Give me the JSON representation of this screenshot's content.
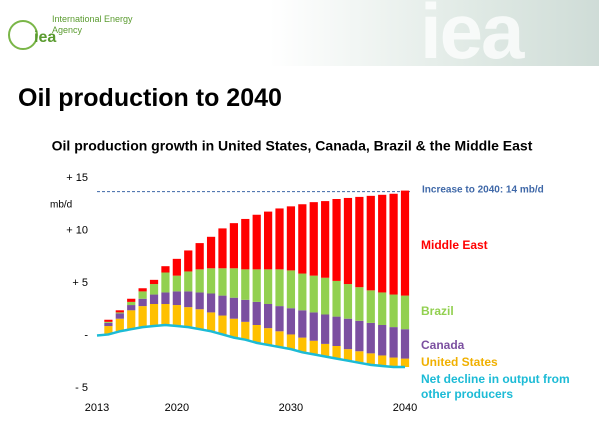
{
  "header": {
    "logo": "iea",
    "organization": "International Energy Agency"
  },
  "slide_title": "Oil production to 2040",
  "chart_data": {
    "type": "bar",
    "title": "Oil production growth in United States, Canada, Brazil & the Middle East",
    "y_label": "mb/d",
    "x": [
      2013,
      2014,
      2015,
      2016,
      2017,
      2018,
      2019,
      2020,
      2021,
      2022,
      2023,
      2024,
      2025,
      2026,
      2027,
      2028,
      2029,
      2030,
      2031,
      2032,
      2033,
      2034,
      2035,
      2036,
      2037,
      2038,
      2039,
      2040
    ],
    "xlim": [
      2013,
      2040
    ],
    "xticks": [
      2013,
      2020,
      2030,
      2040
    ],
    "ylim": [
      -5,
      15
    ],
    "yticks": [
      {
        "value": -5,
        "label": "- 5"
      },
      {
        "value": 0,
        "label": "-"
      },
      {
        "value": 5,
        "label": "+ 5"
      },
      {
        "value": 10,
        "label": "+ 10"
      },
      {
        "value": 15,
        "label": "+ 15"
      }
    ],
    "grid": false,
    "stacked": true,
    "series": [
      {
        "name": "United States",
        "color": "#ffc000",
        "values": [
          null,
          0.8,
          1.2,
          1.8,
          2.0,
          2.1,
          2.0,
          2.0,
          1.9,
          1.9,
          1.8,
          1.8,
          1.8,
          1.7,
          1.7,
          1.6,
          1.5,
          1.4,
          1.4,
          1.3,
          1.2,
          1.2,
          1.1,
          1.1,
          1.1,
          1.0,
          0.9,
          0.8
        ]
      },
      {
        "name": "Canada",
        "color": "#7b4fa0",
        "values": [
          null,
          0.3,
          0.5,
          0.5,
          0.7,
          0.9,
          1.1,
          1.3,
          1.5,
          1.6,
          1.8,
          1.9,
          2.0,
          2.1,
          2.2,
          2.3,
          2.4,
          2.5,
          2.6,
          2.7,
          2.8,
          2.8,
          2.9,
          2.9,
          2.9,
          2.9,
          2.9,
          2.8
        ]
      },
      {
        "name": "Brazil",
        "color": "#92d050",
        "values": [
          null,
          0.1,
          0.1,
          0.3,
          0.7,
          1.0,
          1.9,
          1.5,
          1.9,
          2.2,
          2.4,
          2.6,
          2.8,
          2.9,
          3.1,
          3.3,
          3.5,
          3.6,
          3.5,
          3.5,
          3.5,
          3.4,
          3.3,
          3.2,
          3.1,
          3.1,
          3.1,
          3.2
        ]
      },
      {
        "name": "Middle East",
        "color": "#ff0000",
        "values": [
          null,
          0.2,
          0.2,
          0.3,
          0.3,
          0.4,
          0.6,
          1.6,
          2.0,
          2.5,
          3.0,
          3.8,
          4.3,
          4.8,
          5.2,
          5.5,
          5.8,
          6.1,
          6.6,
          7.0,
          7.3,
          7.8,
          8.2,
          8.6,
          9.0,
          9.3,
          9.6,
          10.0
        ]
      },
      {
        "name": "Net decline in output from other producers",
        "color": "#1cbbd6",
        "type": "line",
        "values": [
          0,
          0.1,
          0.4,
          0.6,
          0.8,
          0.9,
          1.0,
          0.9,
          0.8,
          0.6,
          0.4,
          0.1,
          -0.2,
          -0.4,
          -0.7,
          -0.9,
          -1.1,
          -1.3,
          -1.6,
          -1.8,
          -2.0,
          -2.2,
          -2.4,
          -2.6,
          -2.8,
          -2.9,
          -3.0,
          -3.0
        ]
      }
    ],
    "reference_line": {
      "value": 13.7,
      "label": "Increase  to 2040: 14 mb/d",
      "color": "#3f68a8"
    }
  }
}
